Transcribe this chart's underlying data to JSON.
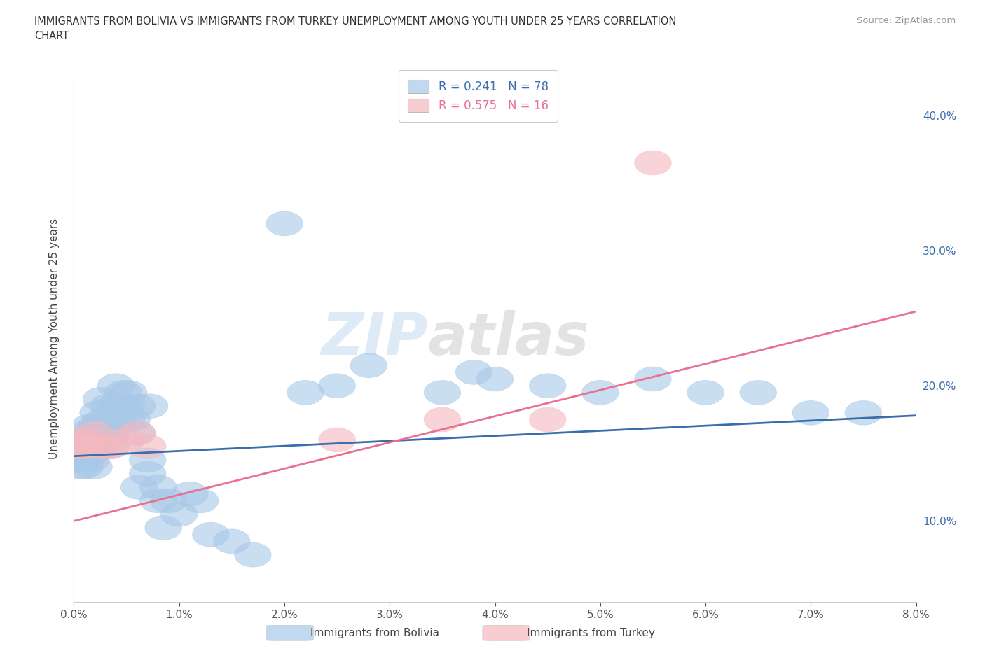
{
  "title_line1": "IMMIGRANTS FROM BOLIVIA VS IMMIGRANTS FROM TURKEY UNEMPLOYMENT AMONG YOUTH UNDER 25 YEARS CORRELATION",
  "title_line2": "CHART",
  "source_text": "Source: ZipAtlas.com",
  "ylabel": "Unemployment Among Youth under 25 years",
  "xlim": [
    0.0,
    0.08
  ],
  "ylim": [
    0.04,
    0.43
  ],
  "xtick_vals": [
    0.0,
    0.01,
    0.02,
    0.03,
    0.04,
    0.05,
    0.06,
    0.07,
    0.08
  ],
  "ytick_vals": [
    0.1,
    0.2,
    0.3,
    0.4
  ],
  "bolivia_color": "#a8c8e8",
  "turkey_color": "#f4b8c0",
  "bolivia_line_color": "#3a6dab",
  "turkey_line_color": "#e87090",
  "bolivia_R": 0.241,
  "bolivia_N": 78,
  "turkey_R": 0.575,
  "turkey_N": 16,
  "legend_bolivia_label": "R = 0.241   N = 78",
  "legend_turkey_label": "R = 0.575   N = 16",
  "watermark_part1": "ZIP",
  "watermark_part2": "atlas",
  "background_color": "#ffffff",
  "grid_color": "#cccccc",
  "bolivia_x": [
    0.0002,
    0.0003,
    0.0004,
    0.0005,
    0.0005,
    0.0006,
    0.0007,
    0.0008,
    0.0008,
    0.0009,
    0.001,
    0.001,
    0.0012,
    0.0013,
    0.0013,
    0.0014,
    0.0015,
    0.0016,
    0.0016,
    0.0017,
    0.0018,
    0.0019,
    0.002,
    0.002,
    0.0021,
    0.0022,
    0.0023,
    0.0024,
    0.0025,
    0.0026,
    0.0028,
    0.003,
    0.003,
    0.0032,
    0.0033,
    0.0034,
    0.0035,
    0.0036,
    0.0038,
    0.004,
    0.004,
    0.0042,
    0.0045,
    0.0047,
    0.005,
    0.005,
    0.0052,
    0.0055,
    0.006,
    0.006,
    0.0062,
    0.007,
    0.007,
    0.0072,
    0.008,
    0.008,
    0.0085,
    0.009,
    0.01,
    0.011,
    0.012,
    0.013,
    0.015,
    0.017,
    0.02,
    0.022,
    0.025,
    0.028,
    0.035,
    0.038,
    0.04,
    0.045,
    0.05,
    0.055,
    0.06,
    0.065,
    0.07,
    0.075
  ],
  "bolivia_y": [
    0.155,
    0.16,
    0.155,
    0.15,
    0.145,
    0.14,
    0.15,
    0.155,
    0.145,
    0.16,
    0.155,
    0.14,
    0.165,
    0.16,
    0.15,
    0.155,
    0.17,
    0.15,
    0.145,
    0.155,
    0.16,
    0.14,
    0.165,
    0.155,
    0.17,
    0.155,
    0.18,
    0.17,
    0.16,
    0.19,
    0.175,
    0.17,
    0.165,
    0.175,
    0.185,
    0.17,
    0.155,
    0.165,
    0.175,
    0.2,
    0.185,
    0.175,
    0.185,
    0.195,
    0.185,
    0.175,
    0.195,
    0.175,
    0.185,
    0.165,
    0.125,
    0.145,
    0.135,
    0.185,
    0.115,
    0.125,
    0.095,
    0.115,
    0.105,
    0.12,
    0.115,
    0.09,
    0.085,
    0.075,
    0.32,
    0.195,
    0.2,
    0.215,
    0.195,
    0.21,
    0.205,
    0.2,
    0.195,
    0.205,
    0.195,
    0.195,
    0.18,
    0.18
  ],
  "turkey_x": [
    0.0003,
    0.0006,
    0.0008,
    0.001,
    0.0015,
    0.002,
    0.0025,
    0.003,
    0.0035,
    0.005,
    0.006,
    0.007,
    0.025,
    0.035,
    0.045,
    0.055
  ],
  "turkey_y": [
    0.155,
    0.155,
    0.16,
    0.155,
    0.16,
    0.165,
    0.155,
    0.155,
    0.155,
    0.16,
    0.165,
    0.155,
    0.16,
    0.175,
    0.175,
    0.365
  ],
  "bolivia_line_x": [
    0.0,
    0.08
  ],
  "bolivia_line_y": [
    0.148,
    0.178
  ],
  "turkey_line_x": [
    0.0,
    0.08
  ],
  "turkey_line_y": [
    0.1,
    0.255
  ]
}
